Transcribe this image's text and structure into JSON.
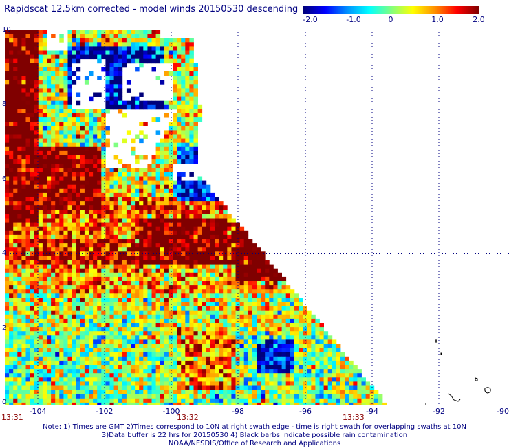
{
  "title": "Rapidscat 12.5km corrected - model winds 20150530 descending",
  "colorbar": {
    "labels": [
      "-2.0",
      "-1.0",
      "0",
      "1.0",
      "2.0"
    ]
  },
  "y_labels": [
    "10",
    "8",
    "6",
    "4",
    "2",
    "0"
  ],
  "x_labels": [
    "-104",
    "-102",
    "-100",
    "-98",
    "-96",
    "-94",
    "-92",
    "-90"
  ],
  "times": [
    "13:31",
    "13:32",
    "13:33"
  ],
  "notes": [
    "Note: 1) Times are GMT 2)Times correspond to 10N at right swath edge - time is right swath for overlapping swaths at 10N",
    "3)Data buffer is 22 hrs for 20150530 4) Black barbs indicate possible rain contamination",
    "NOAA/NESDIS/Office of Research and Applications"
  ],
  "colors": {
    "text": "#000080",
    "time": "#8b0000",
    "grid": "#000080",
    "coast": "#000000"
  }
}
